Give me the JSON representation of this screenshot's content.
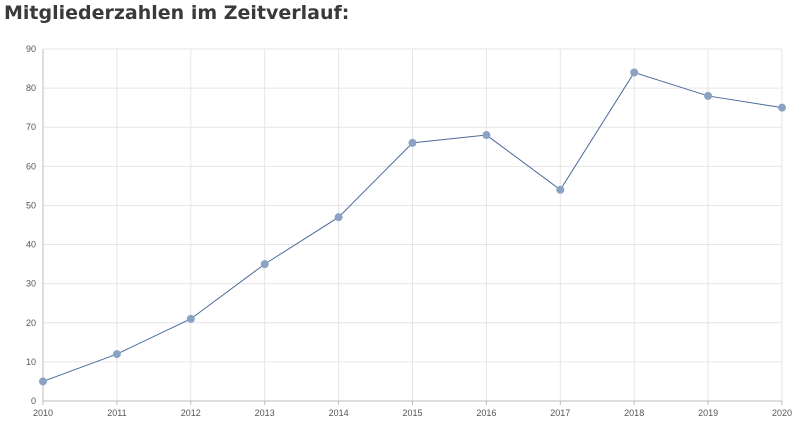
{
  "heading": "Mitgliederzahlen im Zeitverlauf:",
  "chart_data": {
    "type": "line",
    "title": "",
    "xlabel": "",
    "ylabel": "",
    "x": [
      "2010",
      "2011",
      "2012",
      "2013",
      "2014",
      "2015",
      "2016",
      "2017",
      "2018",
      "2019",
      "2020"
    ],
    "series": [
      {
        "values": [
          5,
          12,
          21,
          35,
          47,
          66,
          68,
          54,
          84,
          78,
          75
        ],
        "color": "#4a6a9b",
        "marker_color": "#8aa3c4"
      }
    ],
    "ylim": [
      0,
      90
    ],
    "yticks": [
      0,
      10,
      20,
      30,
      40,
      50,
      60,
      70,
      80,
      90
    ],
    "grid": true,
    "legend": "none"
  }
}
